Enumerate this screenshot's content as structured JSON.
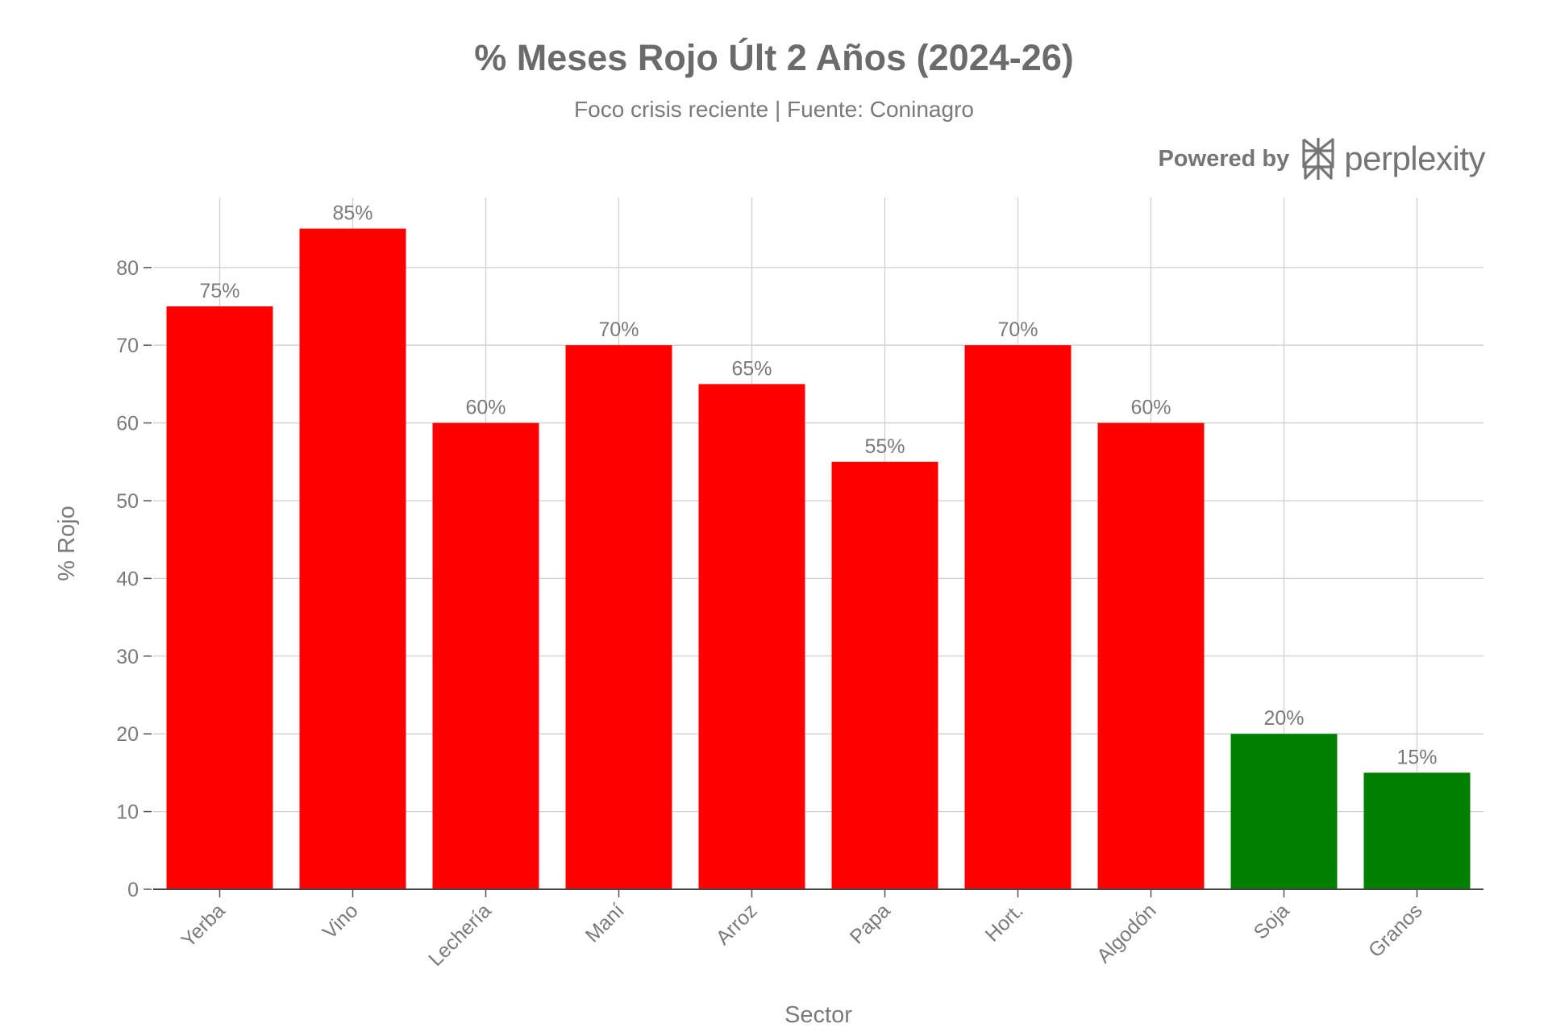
{
  "chart_data": {
    "type": "bar",
    "title": "% Meses Rojo Últ 2 Años (2024-26)",
    "subtitle": "Foco crisis reciente | Fuente: Coninagro",
    "xlabel": "Sector",
    "ylabel": "% Rojo",
    "categories": [
      "Yerba",
      "Vino",
      "Lechería",
      "Maní",
      "Arroz",
      "Papa",
      "Hort.",
      "Algodón",
      "Soja",
      "Granos"
    ],
    "values": [
      75,
      85,
      60,
      70,
      65,
      55,
      70,
      60,
      20,
      15
    ],
    "data_labels": [
      "75%",
      "85%",
      "60%",
      "70%",
      "65%",
      "55%",
      "70%",
      "60%",
      "20%",
      "15%"
    ],
    "bar_colors": [
      "#ff0000",
      "#ff0000",
      "#ff0000",
      "#ff0000",
      "#ff0000",
      "#ff0000",
      "#ff0000",
      "#ff0000",
      "#008000",
      "#008000"
    ],
    "ylim": [
      0,
      89
    ],
    "yticks": [
      0,
      10,
      20,
      30,
      40,
      50,
      60,
      70,
      80
    ],
    "grid": true,
    "legend": "none"
  },
  "branding": {
    "prefix": "Powered by",
    "name": "perplexity",
    "icon": "perplexity-logo-icon"
  }
}
